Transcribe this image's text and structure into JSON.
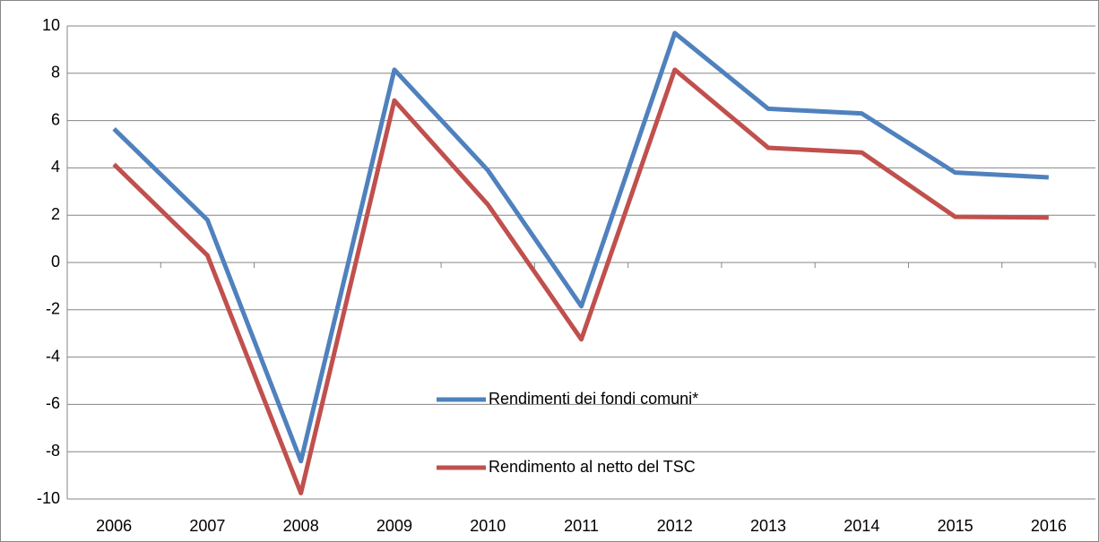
{
  "chart_data": {
    "type": "line",
    "categories": [
      "2006",
      "2007",
      "2008",
      "2009",
      "2010",
      "2011",
      "2012",
      "2013",
      "2014",
      "2015",
      "2016"
    ],
    "series": [
      {
        "name": "Rendimenti dei fondi comuni*",
        "color": "#4f81bd",
        "values": [
          5.65,
          1.8,
          -8.4,
          8.15,
          3.9,
          -1.85,
          9.7,
          6.5,
          6.3,
          3.8,
          3.6
        ]
      },
      {
        "name": "Rendimento al netto del TSC",
        "color": "#c0504d",
        "values": [
          4.15,
          0.3,
          -9.75,
          6.85,
          2.45,
          -3.25,
          8.15,
          4.85,
          4.65,
          1.93,
          1.9
        ]
      }
    ],
    "ylim": [
      -10,
      10
    ],
    "yticks": [
      -10,
      -8,
      -6,
      -4,
      -2,
      0,
      2,
      4,
      6,
      8,
      10
    ],
    "grid": true
  }
}
